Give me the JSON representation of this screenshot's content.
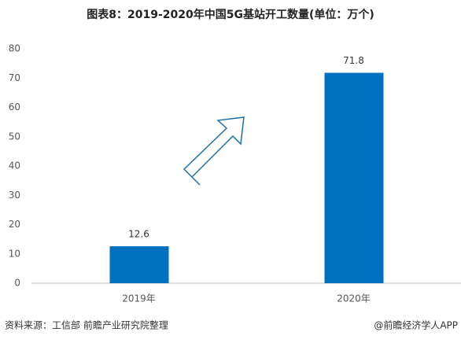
{
  "chart_data": {
    "type": "bar",
    "title": "图表8：2019-2020年中国5G基站开工数量(单位：万个)",
    "categories": [
      "2019年",
      "2020年"
    ],
    "values": [
      12.6,
      71.8
    ],
    "color": "#0070c0",
    "ylim": [
      0,
      80
    ],
    "yticks": [
      0,
      10,
      20,
      30,
      40,
      50,
      60,
      70,
      80
    ],
    "grid": false,
    "source": "资料来源：工信部 前瞻产业研究院整理",
    "credit": "@前瞻经济学人APP"
  }
}
